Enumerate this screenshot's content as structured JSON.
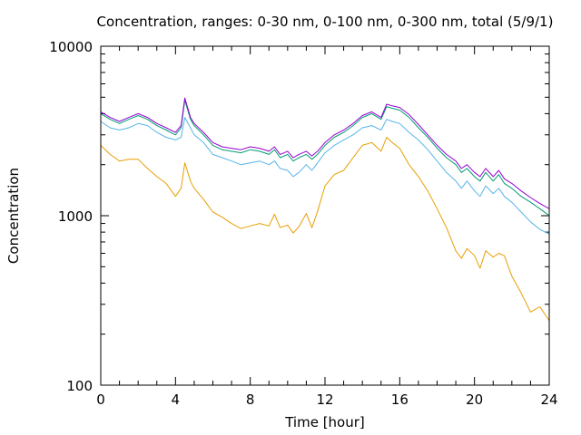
{
  "chart_data": {
    "type": "line",
    "title": "Concentration, ranges: 0-30 nm, 0-100 nm, 0-300 nm, total (5/9/1)",
    "xlabel": "Time [hour]",
    "ylabel": "Concentration",
    "xlim": [
      0,
      24
    ],
    "ylim": [
      100,
      10000
    ],
    "yscale": "log",
    "xticks": [
      0,
      4,
      8,
      12,
      16,
      20,
      24
    ],
    "xtick_labels": [
      "0",
      "4",
      "8",
      "12",
      "16",
      "20",
      "24"
    ],
    "yticks": [
      100,
      1000,
      10000
    ],
    "ytick_labels": [
      "100",
      "1000",
      "10000"
    ],
    "grid": false,
    "legend": "none",
    "series": [
      {
        "color": "#e69f00",
        "x": [
          0,
          0.5,
          1,
          1.5,
          2,
          2.5,
          3,
          3.5,
          4,
          4.3,
          4.5,
          4.8,
          5,
          5.5,
          6,
          6.5,
          7,
          7.5,
          8,
          8.5,
          9,
          9.3,
          9.6,
          10,
          10.3,
          10.6,
          11,
          11.3,
          11.6,
          12,
          12.5,
          13,
          13.5,
          14,
          14.5,
          15,
          15.3,
          15.6,
          16,
          16.5,
          17,
          17.5,
          18,
          18.5,
          19,
          19.3,
          19.6,
          20,
          20.3,
          20.6,
          21,
          21.3,
          21.6,
          22,
          22.5,
          23,
          23.5,
          24
        ],
        "y": [
          2600,
          2300,
          2100,
          2150,
          2150,
          1900,
          1700,
          1550,
          1300,
          1450,
          2050,
          1600,
          1450,
          1250,
          1050,
          980,
          900,
          840,
          870,
          900,
          870,
          1020,
          850,
          880,
          790,
          860,
          1030,
          850,
          1060,
          1500,
          1750,
          1850,
          2200,
          2600,
          2700,
          2400,
          2900,
          2700,
          2500,
          2000,
          1700,
          1400,
          1100,
          850,
          620,
          560,
          640,
          580,
          490,
          620,
          570,
          600,
          580,
          440,
          350,
          270,
          290,
          240
        ]
      },
      {
        "color": "#56b4e9",
        "x": [
          0,
          0.5,
          1,
          1.5,
          2,
          2.5,
          3,
          3.5,
          4,
          4.3,
          4.5,
          4.8,
          5,
          5.5,
          6,
          6.5,
          7,
          7.5,
          8,
          8.5,
          9,
          9.3,
          9.6,
          10,
          10.3,
          10.6,
          11,
          11.3,
          11.6,
          12,
          12.5,
          13,
          13.5,
          14,
          14.5,
          15,
          15.3,
          15.6,
          16,
          16.5,
          17,
          17.5,
          18,
          18.5,
          19,
          19.3,
          19.6,
          20,
          20.3,
          20.6,
          21,
          21.3,
          21.6,
          22,
          22.5,
          23,
          23.5,
          24
        ],
        "y": [
          3600,
          3300,
          3200,
          3300,
          3500,
          3400,
          3100,
          2900,
          2800,
          2900,
          3800,
          3300,
          3000,
          2700,
          2300,
          2200,
          2100,
          2000,
          2050,
          2100,
          2000,
          2100,
          1900,
          1850,
          1700,
          1800,
          2000,
          1850,
          2050,
          2350,
          2600,
          2800,
          3000,
          3300,
          3400,
          3200,
          3700,
          3600,
          3500,
          3100,
          2800,
          2450,
          2100,
          1800,
          1600,
          1450,
          1600,
          1400,
          1300,
          1500,
          1350,
          1450,
          1300,
          1200,
          1050,
          920,
          830,
          780
        ]
      },
      {
        "color": "#009e73",
        "x": [
          0,
          0.5,
          1,
          1.5,
          2,
          2.5,
          3,
          3.5,
          4,
          4.3,
          4.5,
          4.8,
          5,
          5.5,
          6,
          6.5,
          7,
          7.5,
          8,
          8.5,
          9,
          9.3,
          9.6,
          10,
          10.3,
          10.6,
          11,
          11.3,
          11.6,
          12,
          12.5,
          13,
          13.5,
          14,
          14.5,
          15,
          15.3,
          15.6,
          16,
          16.5,
          17,
          17.5,
          18,
          18.5,
          19,
          19.3,
          19.6,
          20,
          20.3,
          20.6,
          21,
          21.3,
          21.6,
          22,
          22.5,
          23,
          23.5,
          24
        ],
        "y": [
          4000,
          3700,
          3500,
          3700,
          3900,
          3700,
          3400,
          3200,
          3000,
          3300,
          4800,
          3700,
          3400,
          3000,
          2600,
          2450,
          2400,
          2350,
          2450,
          2400,
          2300,
          2450,
          2200,
          2300,
          2100,
          2200,
          2300,
          2150,
          2300,
          2600,
          2900,
          3100,
          3400,
          3800,
          4000,
          3700,
          4400,
          4300,
          4200,
          3800,
          3300,
          2900,
          2500,
          2200,
          2000,
          1800,
          1900,
          1700,
          1600,
          1800,
          1600,
          1750,
          1550,
          1450,
          1300,
          1200,
          1100,
          1000
        ]
      },
      {
        "color": "#9400d3",
        "x": [
          0,
          0.5,
          1,
          1.5,
          2,
          2.5,
          3,
          3.5,
          4,
          4.3,
          4.5,
          4.8,
          5,
          5.5,
          6,
          6.5,
          7,
          7.5,
          8,
          8.5,
          9,
          9.3,
          9.6,
          10,
          10.3,
          10.6,
          11,
          11.3,
          11.6,
          12,
          12.5,
          13,
          13.5,
          14,
          14.5,
          15,
          15.3,
          15.6,
          16,
          16.5,
          17,
          17.5,
          18,
          18.5,
          19,
          19.3,
          19.6,
          20,
          20.3,
          20.6,
          21,
          21.3,
          21.6,
          22,
          22.5,
          23,
          23.5,
          24
        ],
        "y": [
          4100,
          3800,
          3600,
          3800,
          4000,
          3800,
          3500,
          3300,
          3100,
          3400,
          4950,
          3800,
          3500,
          3100,
          2700,
          2550,
          2500,
          2450,
          2550,
          2500,
          2400,
          2550,
          2300,
          2400,
          2200,
          2300,
          2400,
          2250,
          2400,
          2700,
          3000,
          3200,
          3500,
          3900,
          4100,
          3800,
          4550,
          4450,
          4350,
          3950,
          3450,
          3000,
          2600,
          2300,
          2100,
          1900,
          2000,
          1800,
          1700,
          1900,
          1700,
          1850,
          1650,
          1550,
          1400,
          1280,
          1180,
          1100
        ]
      }
    ]
  }
}
